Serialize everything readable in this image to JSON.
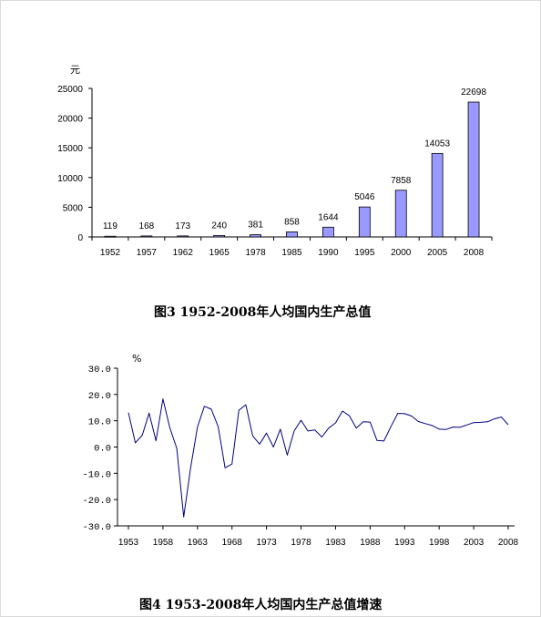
{
  "chart_data": [
    {
      "type": "bar",
      "title": "图3  1952-2008年人均国内生产总值",
      "ylabel": "元",
      "xlabel": "",
      "ylim": [
        0,
        25000
      ],
      "yticks": [
        0,
        5000,
        10000,
        15000,
        20000,
        25000
      ],
      "grid": false,
      "legend": "none",
      "bar_color": "#9999ff",
      "categories": [
        "1952",
        "1957",
        "1962",
        "1965",
        "1978",
        "1985",
        "1990",
        "1995",
        "2000",
        "2005",
        "2008"
      ],
      "values": [
        119,
        168,
        173,
        240,
        381,
        858,
        1644,
        5046,
        7858,
        14053,
        22698
      ]
    },
    {
      "type": "line",
      "title": "图4  1953-2008年人均国内生产总值增速",
      "ylabel": "%",
      "xlabel": "",
      "ylim": [
        -30,
        30
      ],
      "yticks": [
        "-30.0",
        "-20.0",
        "-10.0",
        "0.0",
        "10.0",
        "20.0",
        "30.0"
      ],
      "xticks": [
        "1953",
        "1958",
        "1963",
        "1968",
        "1973",
        "1978",
        "1983",
        "1988",
        "1993",
        "1998",
        "2003",
        "2008"
      ],
      "grid": false,
      "legend": "none",
      "line_color": "#000080",
      "x": [
        1953,
        1954,
        1955,
        1956,
        1957,
        1958,
        1959,
        1960,
        1961,
        1962,
        1963,
        1964,
        1965,
        1966,
        1967,
        1968,
        1969,
        1970,
        1971,
        1972,
        1973,
        1974,
        1975,
        1976,
        1977,
        1978,
        1979,
        1980,
        1981,
        1982,
        1983,
        1984,
        1985,
        1986,
        1987,
        1988,
        1989,
        1990,
        1991,
        1992,
        1993,
        1994,
        1995,
        1996,
        1997,
        1998,
        1999,
        2000,
        2001,
        2002,
        2003,
        2004,
        2005,
        2006,
        2007,
        2008
      ],
      "values": [
        13.1,
        1.6,
        4.5,
        12.9,
        2.4,
        18.3,
        7.3,
        -0.5,
        -26.6,
        -8.1,
        7.6,
        15.5,
        14.4,
        7.7,
        -7.9,
        -6.5,
        14.0,
        16.1,
        4.2,
        1.1,
        5.3,
        0.0,
        6.8,
        -3.1,
        6.1,
        10.2,
        6.1,
        6.5,
        3.8,
        7.2,
        9.2,
        13.7,
        11.9,
        7.2,
        9.6,
        9.5,
        2.5,
        2.3,
        7.7,
        12.8,
        12.7,
        11.8,
        9.7,
        8.9,
        8.2,
        6.8,
        6.7,
        7.6,
        7.5,
        8.4,
        9.3,
        9.4,
        9.6,
        10.7,
        11.4,
        8.5
      ]
    }
  ]
}
